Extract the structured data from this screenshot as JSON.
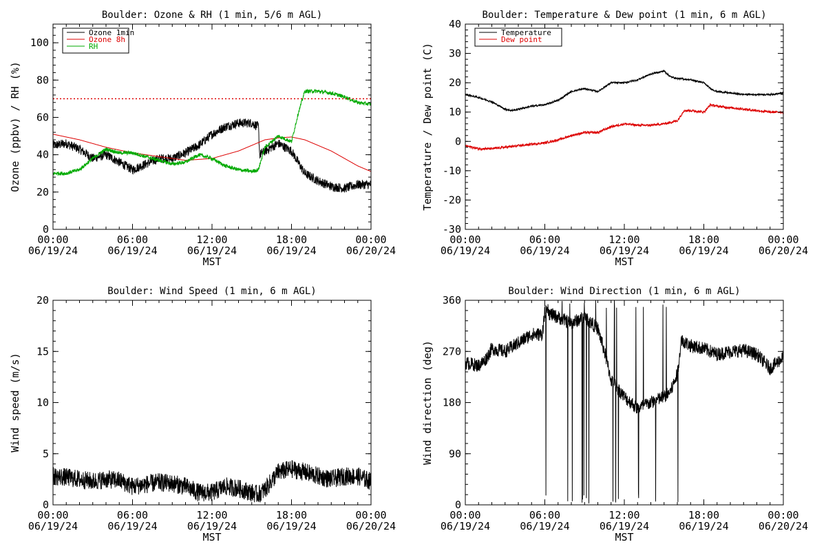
{
  "chart_data": [
    {
      "type": "line",
      "title": "Boulder: Ozone & RH (1 min, 5/6 m AGL)",
      "ylabel": "Ozone (ppbv) / RH (%)",
      "xlabel": "MST",
      "xlim": [
        0,
        24
      ],
      "ylim": [
        0,
        110
      ],
      "yticks": [
        0,
        20,
        40,
        60,
        80,
        100
      ],
      "xticks": [
        "00:00",
        "06:00",
        "12:00",
        "18:00",
        "00:00"
      ],
      "xdates": [
        "06/19/24",
        "06/19/24",
        "06/19/24",
        "06/19/24",
        "06/20/24"
      ],
      "legend": [
        "Ozone 1min",
        "Ozone 8h",
        "RH"
      ],
      "reference_line": 70,
      "series": [
        {
          "name": "Ozone 1min",
          "color": "#000000",
          "noise": 2.5,
          "x": [
            0,
            1,
            2,
            3,
            4,
            5,
            6,
            7,
            8,
            9,
            10,
            11,
            12,
            13,
            14,
            15,
            15.5,
            15.6,
            16,
            17,
            18,
            19,
            20,
            21,
            22,
            23,
            24
          ],
          "y": [
            45,
            46,
            43,
            38,
            40,
            36,
            32,
            35,
            38,
            38,
            41,
            45,
            51,
            55,
            57,
            57,
            55,
            40,
            42,
            46,
            42,
            30,
            26,
            23,
            22,
            24,
            24
          ]
        },
        {
          "name": "Ozone 8h",
          "color": "#dd0000",
          "noise": 0,
          "x": [
            0,
            2,
            4,
            6,
            8,
            10,
            12,
            14,
            16,
            17,
            18,
            19,
            20,
            21,
            22,
            23,
            24
          ],
          "y": [
            51,
            48,
            44,
            41,
            39,
            37,
            38,
            42,
            48,
            49,
            49.5,
            48,
            45,
            42,
            38,
            34,
            31
          ]
        },
        {
          "name": "RH",
          "color": "#00aa00",
          "noise": 1,
          "x": [
            0,
            1,
            2,
            3,
            4,
            5,
            6,
            7,
            8,
            9,
            10,
            11,
            12,
            13,
            14,
            15,
            15.5,
            16,
            17,
            18,
            18.5,
            19,
            20,
            21,
            22,
            23,
            24
          ],
          "y": [
            30,
            30,
            32,
            38,
            43,
            41,
            41,
            39,
            37,
            35,
            36,
            40,
            38,
            34,
            32,
            31,
            32,
            44,
            50,
            47,
            62,
            74,
            74,
            73,
            71,
            68,
            67
          ]
        }
      ]
    },
    {
      "type": "line",
      "title": "Boulder: Temperature & Dew point (1 min, 6 m AGL)",
      "ylabel": "Temperature / Dew point (C)",
      "xlabel": "MST",
      "xlim": [
        0,
        24
      ],
      "ylim": [
        -30,
        40
      ],
      "yticks": [
        -30,
        -20,
        -10,
        0,
        10,
        20,
        30,
        40
      ],
      "xticks": [
        "00:00",
        "06:00",
        "12:00",
        "18:00",
        "00:00"
      ],
      "xdates": [
        "06/19/24",
        "06/19/24",
        "06/19/24",
        "06/19/24",
        "06/20/24"
      ],
      "legend": [
        "Temperature",
        "Dew point"
      ],
      "series": [
        {
          "name": "Temperature",
          "color": "#000000",
          "noise": 0.3,
          "x": [
            0,
            1,
            2,
            3,
            3.5,
            4,
            5,
            6,
            7,
            8,
            9,
            10,
            11,
            12,
            13,
            14,
            15,
            15.5,
            16,
            17,
            18,
            18.5,
            19,
            20,
            21,
            22,
            23,
            24
          ],
          "y": [
            16,
            15,
            13.5,
            11,
            10.5,
            11,
            12,
            12.5,
            14,
            17,
            18,
            17,
            20,
            20,
            21,
            23,
            24,
            22,
            21.5,
            21,
            20,
            18,
            17,
            16.5,
            16,
            16,
            16,
            16.5
          ]
        },
        {
          "name": "Dew point",
          "color": "#dd0000",
          "noise": 0.4,
          "x": [
            0,
            1,
            2,
            3,
            4,
            5,
            6,
            7,
            8,
            9,
            10,
            11,
            12,
            13,
            14,
            15,
            16,
            16.5,
            17,
            18,
            18.5,
            19,
            20,
            21,
            22,
            23,
            24
          ],
          "y": [
            -1.5,
            -2.5,
            -2.5,
            -2,
            -1.5,
            -1,
            -0.5,
            0.5,
            2,
            3,
            3,
            5,
            6,
            5.5,
            5.5,
            6,
            7,
            10.5,
            10.5,
            10,
            12.5,
            12,
            11.5,
            11,
            10.5,
            10,
            10
          ]
        }
      ]
    },
    {
      "type": "line",
      "title": "Boulder: Wind Speed (1 min, 6 m AGL)",
      "ylabel": "Wind speed (m/s)",
      "xlabel": "MST",
      "xlim": [
        0,
        24
      ],
      "ylim": [
        0,
        20
      ],
      "yticks": [
        0,
        5,
        10,
        15,
        20
      ],
      "xticks": [
        "00:00",
        "06:00",
        "12:00",
        "18:00",
        "00:00"
      ],
      "xdates": [
        "06/19/24",
        "06/19/24",
        "06/19/24",
        "06/19/24",
        "06/20/24"
      ],
      "series": [
        {
          "name": "",
          "color": "#000000",
          "noise": 0.9,
          "x": [
            0,
            1,
            2,
            3,
            4,
            5,
            6,
            7,
            8,
            9,
            10,
            11,
            12,
            13,
            14,
            15,
            15.5,
            16,
            17,
            18,
            19,
            20,
            21,
            22,
            23,
            24
          ],
          "y": [
            2.8,
            2.7,
            2.5,
            2.3,
            2.5,
            2.4,
            1.8,
            2,
            2.2,
            2.1,
            1.8,
            1.2,
            1.2,
            1.8,
            1.6,
            1.2,
            1.0,
            1.5,
            3.2,
            3.5,
            3.2,
            2.8,
            2.5,
            2.8,
            2.8,
            2.3
          ]
        }
      ]
    },
    {
      "type": "line",
      "title": "Boulder: Wind Direction (1 min, 6 m AGL)",
      "ylabel": "Wind direction (deg)",
      "xlabel": "MST",
      "xlim": [
        0,
        24
      ],
      "ylim": [
        0,
        360
      ],
      "yticks": [
        0,
        90,
        180,
        270,
        360
      ],
      "xticks": [
        "00:00",
        "06:00",
        "12:00",
        "18:00",
        "00:00"
      ],
      "xdates": [
        "06/19/24",
        "06/19/24",
        "06/19/24",
        "06/19/24",
        "06/20/24"
      ],
      "series": [
        {
          "name": "",
          "color": "#000000",
          "noise": 12,
          "wrap_start": 5.9,
          "wrap_end": 16.2,
          "x": [
            0,
            1,
            1.5,
            2,
            3,
            4,
            5,
            5.8,
            6,
            7,
            8,
            9,
            10,
            10.5,
            11,
            12,
            13,
            14,
            15,
            15.5,
            16,
            16.3,
            17,
            18,
            19,
            20,
            21,
            22,
            23,
            24
          ],
          "y": [
            250,
            245,
            255,
            275,
            270,
            285,
            300,
            300,
            340,
            330,
            320,
            330,
            310,
            270,
            220,
            190,
            170,
            180,
            190,
            200,
            230,
            290,
            280,
            275,
            265,
            270,
            272,
            265,
            240,
            260
          ]
        }
      ]
    }
  ]
}
